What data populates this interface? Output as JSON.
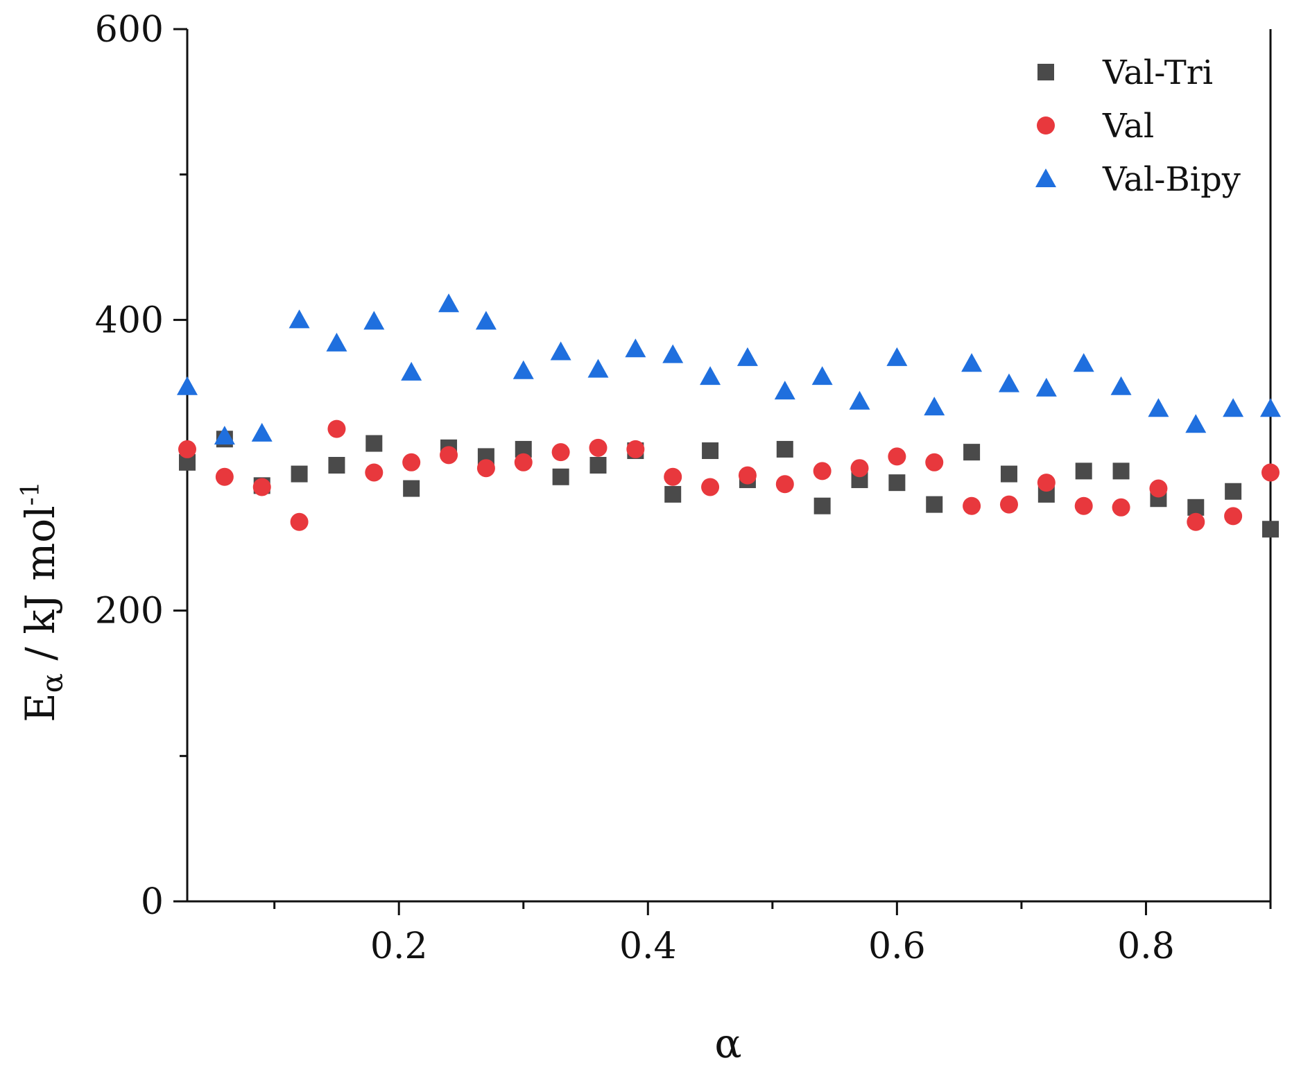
{
  "chart_data": {
    "type": "scatter",
    "title": "",
    "xlabel": "α",
    "ylabel": {
      "main": "E",
      "subscript": "α",
      "unit": " / kJ mol",
      "superscript": "-1"
    },
    "xlim": [
      0.03,
      0.9
    ],
    "ylim": [
      0,
      600
    ],
    "xticks": [
      0.2,
      0.4,
      0.6,
      0.8
    ],
    "xtick_labels": [
      "0.2",
      "0.4",
      "0.6",
      "0.8"
    ],
    "xticks_minor": [
      0.1,
      0.3,
      0.5,
      0.7,
      0.9
    ],
    "yticks": [
      0,
      200,
      400,
      600
    ],
    "ytick_labels": [
      "0",
      "200",
      "400",
      "600"
    ],
    "yticks_minor": [
      100,
      300,
      500
    ],
    "grid": false,
    "legend_position": "top-right",
    "x": [
      0.03,
      0.06,
      0.09,
      0.12,
      0.15,
      0.18,
      0.21,
      0.24,
      0.27,
      0.3,
      0.33,
      0.36,
      0.39,
      0.42,
      0.45,
      0.48,
      0.51,
      0.54,
      0.57,
      0.6,
      0.63,
      0.66,
      0.69,
      0.72,
      0.75,
      0.78,
      0.81,
      0.84,
      0.87,
      0.9
    ],
    "series": [
      {
        "name": "Val-Tri",
        "marker": "square",
        "color": "#4a4a4a",
        "values": [
          302,
          318,
          286,
          294,
          300,
          315,
          284,
          312,
          306,
          311,
          292,
          300,
          310,
          280,
          310,
          290,
          311,
          272,
          290,
          288,
          273,
          309,
          294,
          280,
          296,
          296,
          277,
          271,
          282,
          256
        ]
      },
      {
        "name": "Val",
        "marker": "circle",
        "color": "#e8383d",
        "values": [
          311,
          292,
          285,
          261,
          325,
          295,
          302,
          307,
          298,
          302,
          309,
          312,
          311,
          292,
          285,
          293,
          287,
          296,
          298,
          306,
          302,
          272,
          273,
          288,
          272,
          271,
          284,
          261,
          265,
          295
        ]
      },
      {
        "name": "Val-Bipy",
        "marker": "triangle",
        "color": "#1f6fde",
        "values": [
          354,
          320,
          322,
          400,
          384,
          399,
          364,
          411,
          399,
          365,
          378,
          366,
          380,
          376,
          361,
          374,
          351,
          361,
          344,
          374,
          340,
          370,
          356,
          353,
          370,
          354,
          339,
          328,
          339,
          339
        ]
      }
    ]
  }
}
